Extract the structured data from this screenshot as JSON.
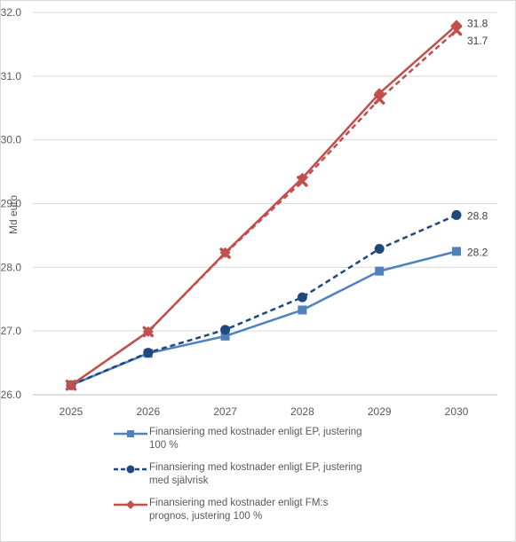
{
  "chart_data": {
    "type": "line",
    "ylabel": "Md euro",
    "ylim": [
      26.0,
      32.0
    ],
    "yticks": [
      "26.0",
      "27.0",
      "28.0",
      "29.0",
      "30.0",
      "31.0",
      "32.0"
    ],
    "categories": [
      "2025",
      "2026",
      "2027",
      "2028",
      "2029",
      "2030"
    ],
    "grid": "horizontal",
    "legend_position": "bottom",
    "series": [
      {
        "name": "Finansiering med kostnader enligt EP, justering 100 %",
        "values": [
          26.15,
          26.65,
          26.92,
          27.33,
          27.94,
          28.25
        ],
        "color": "#4f81bd",
        "dash": "solid",
        "marker": "square",
        "end_label": "28.2"
      },
      {
        "name": "Finansiering med kostnader enligt EP, justering med självrisk",
        "values": [
          26.15,
          26.66,
          27.02,
          27.53,
          28.29,
          28.82
        ],
        "color": "#1f497d",
        "dash": "dashed",
        "marker": "circle",
        "end_label": "28.8"
      },
      {
        "name": "Finansiering med kostnader enligt FM:s prognos, justering 100 %",
        "values": [
          26.15,
          26.99,
          28.23,
          29.4,
          30.73,
          31.8
        ],
        "color": "#c0504d",
        "dash": "solid",
        "marker": "diamond",
        "end_label": "31.8"
      },
      {
        "values": [
          26.15,
          26.99,
          28.22,
          29.35,
          30.64,
          31.72
        ],
        "color": "#c0504d",
        "dash": "dashed",
        "marker": "cross",
        "end_label": "31.7"
      }
    ]
  }
}
